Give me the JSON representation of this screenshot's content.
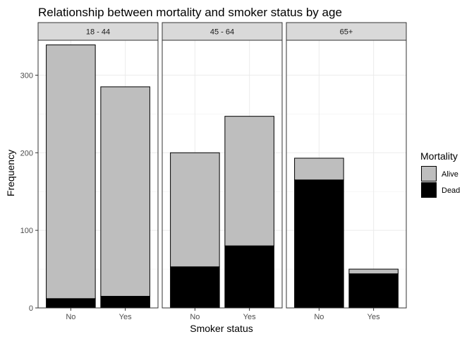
{
  "chart_data": {
    "type": "bar",
    "stacked": true,
    "title": "Relationship between mortality and smoker status by age",
    "xlabel": "Smoker status",
    "ylabel": "Frequency",
    "categories": [
      "No",
      "Yes"
    ],
    "ylim": [
      0,
      345
    ],
    "yticks": [
      0,
      100,
      200,
      300
    ],
    "grid": true,
    "legend": {
      "title": "Mortality",
      "position": "right",
      "entries": [
        {
          "name": "Alive",
          "color": "#bebebe"
        },
        {
          "name": "Dead",
          "color": "#000000"
        }
      ]
    },
    "panels": [
      {
        "label": "18 - 44",
        "series": [
          {
            "name": "Dead",
            "values": [
              12,
              15
            ]
          },
          {
            "name": "Alive",
            "values": [
              327,
              270
            ]
          }
        ]
      },
      {
        "label": "45 - 64",
        "series": [
          {
            "name": "Dead",
            "values": [
              53,
              80
            ]
          },
          {
            "name": "Alive",
            "values": [
              147,
              167
            ]
          }
        ]
      },
      {
        "label": "65+",
        "series": [
          {
            "name": "Dead",
            "values": [
              165,
              44
            ]
          },
          {
            "name": "Alive",
            "values": [
              28,
              6
            ]
          }
        ]
      }
    ]
  }
}
